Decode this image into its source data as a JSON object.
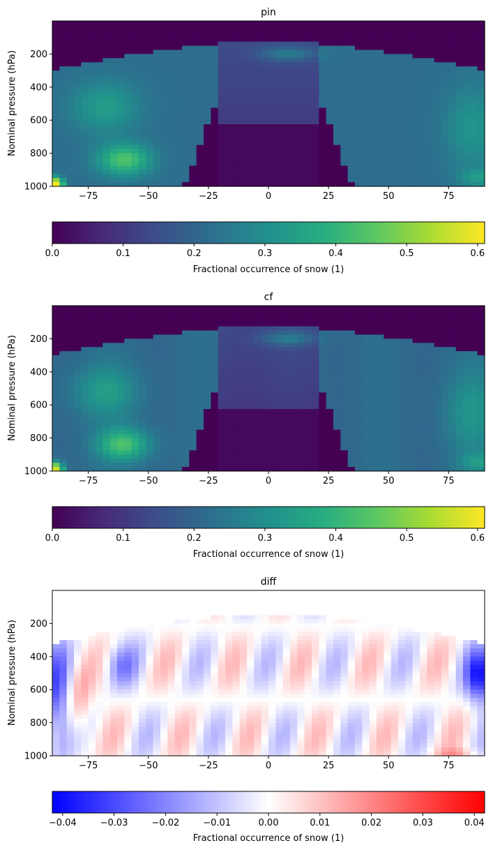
{
  "chart_data": [
    {
      "type": "heatmap",
      "title": "pin",
      "xlabel": "",
      "ylabel": "Nominal pressure (hPa)",
      "xlim": [
        -90,
        90
      ],
      "ylim": [
        1000,
        0
      ],
      "x_ticks": [
        -75,
        -50,
        -25,
        0,
        25,
        50,
        75
      ],
      "x_tick_labels": [
        "−75",
        "−50",
        "−25",
        "0",
        "25",
        "50",
        "75"
      ],
      "y_ticks": [
        200,
        400,
        600,
        800,
        1000
      ],
      "y_tick_labels": [
        "200",
        "400",
        "600",
        "800",
        "1000"
      ],
      "colormap": "viridis",
      "colorbar": {
        "label": "Fractional occurrence of snow (1)",
        "range": [
          0,
          0.61
        ],
        "ticks": [
          0,
          0.1,
          0.2,
          0.3,
          0.4,
          0.5,
          0.6
        ],
        "tick_labels": [
          "0.0",
          "0.1",
          "0.2",
          "0.3",
          "0.4",
          "0.5",
          "0.6"
        ]
      }
    },
    {
      "type": "heatmap",
      "title": "cf",
      "xlabel": "",
      "ylabel": "Nominal pressure (hPa)",
      "xlim": [
        -90,
        90
      ],
      "ylim": [
        1000,
        0
      ],
      "x_ticks": [
        -75,
        -50,
        -25,
        0,
        25,
        50,
        75
      ],
      "x_tick_labels": [
        "−75",
        "−50",
        "−25",
        "0",
        "25",
        "50",
        "75"
      ],
      "y_ticks": [
        200,
        400,
        600,
        800,
        1000
      ],
      "y_tick_labels": [
        "200",
        "400",
        "600",
        "800",
        "1000"
      ],
      "colormap": "viridis",
      "colorbar": {
        "label": "Fractional occurrence of snow (1)",
        "range": [
          0,
          0.61
        ],
        "ticks": [
          0,
          0.1,
          0.2,
          0.3,
          0.4,
          0.5,
          0.6
        ],
        "tick_labels": [
          "0.0",
          "0.1",
          "0.2",
          "0.3",
          "0.4",
          "0.5",
          "0.6"
        ]
      }
    },
    {
      "type": "heatmap",
      "title": "diff",
      "xlabel": "",
      "ylabel": "Nominal pressure (hPa)",
      "xlim": [
        -90,
        90
      ],
      "ylim": [
        1000,
        0
      ],
      "x_ticks": [
        -75,
        -50,
        -25,
        0,
        25,
        50,
        75
      ],
      "x_tick_labels": [
        "−75",
        "−50",
        "−25",
        "0",
        "25",
        "50",
        "75"
      ],
      "y_ticks": [
        200,
        400,
        600,
        800,
        1000
      ],
      "y_tick_labels": [
        "200",
        "400",
        "600",
        "800",
        "1000"
      ],
      "colormap": "bwr",
      "colorbar": {
        "label": "Fractional occurrence of snow (1)",
        "range": [
          -0.042,
          0.042
        ],
        "ticks": [
          -0.04,
          -0.03,
          -0.02,
          -0.01,
          0,
          0.01,
          0.02,
          0.03,
          0.04
        ],
        "tick_labels": [
          "−0.04",
          "−0.03",
          "−0.02",
          "−0.01",
          "0.00",
          "0.01",
          "0.02",
          "0.03",
          "0.04"
        ]
      }
    }
  ]
}
